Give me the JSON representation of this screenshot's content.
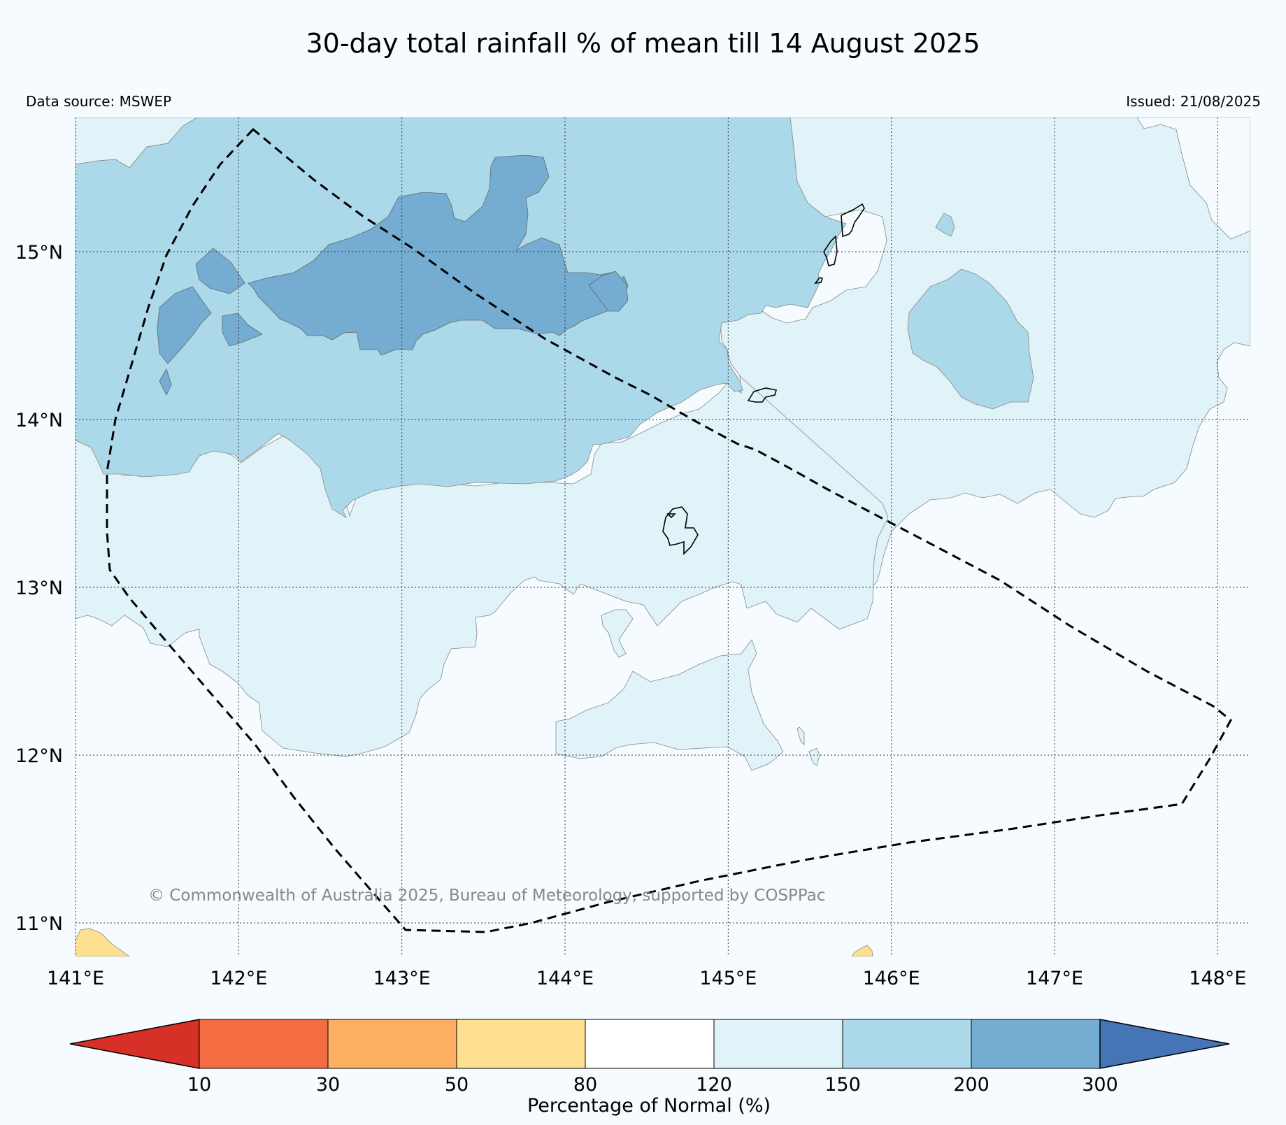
{
  "header": {
    "title": "30-day total rainfall % of mean till 14 August 2025",
    "source": "Data source: MSWEP",
    "issued": "Issued: 21/08/2025"
  },
  "map": {
    "lon_range": [
      141.0,
      148.2
    ],
    "lat_range": [
      10.8,
      15.8
    ],
    "x_ticks": [
      {
        "value": 141,
        "label": "141°E"
      },
      {
        "value": 142,
        "label": "142°E"
      },
      {
        "value": 143,
        "label": "143°E"
      },
      {
        "value": 144,
        "label": "144°E"
      },
      {
        "value": 145,
        "label": "145°E"
      },
      {
        "value": 146,
        "label": "146°E"
      },
      {
        "value": 147,
        "label": "147°E"
      },
      {
        "value": 148,
        "label": "148°E"
      }
    ],
    "y_ticks": [
      {
        "value": 15,
        "label": "15°N"
      },
      {
        "value": 14,
        "label": "14°N"
      },
      {
        "value": 13,
        "label": "13°N"
      },
      {
        "value": 12,
        "label": "12°N"
      },
      {
        "value": 11,
        "label": "11°N"
      }
    ],
    "grid": true,
    "copyright": "© Commonwealth of Australia 2025, Bureau of Meteorology, supported by COSPPac",
    "colors": {
      "ocean_80_120": "#f5fbfe",
      "c120_150": "#e0f3f8",
      "c150_200": "#abd9e9",
      "c200_300": "#74add1",
      "c50_80": "#fee090"
    }
  },
  "colorbar": {
    "title": "Percentage of Normal (%)",
    "boundaries": [
      "10",
      "30",
      "50",
      "80",
      "120",
      "150",
      "200",
      "300"
    ],
    "colors": [
      "#d73027",
      "#f46d43",
      "#fdae61",
      "#fee090",
      "#ffffff",
      "#e0f3f8",
      "#abd9e9",
      "#74add1",
      "#4575b4"
    ],
    "extend": "both"
  }
}
